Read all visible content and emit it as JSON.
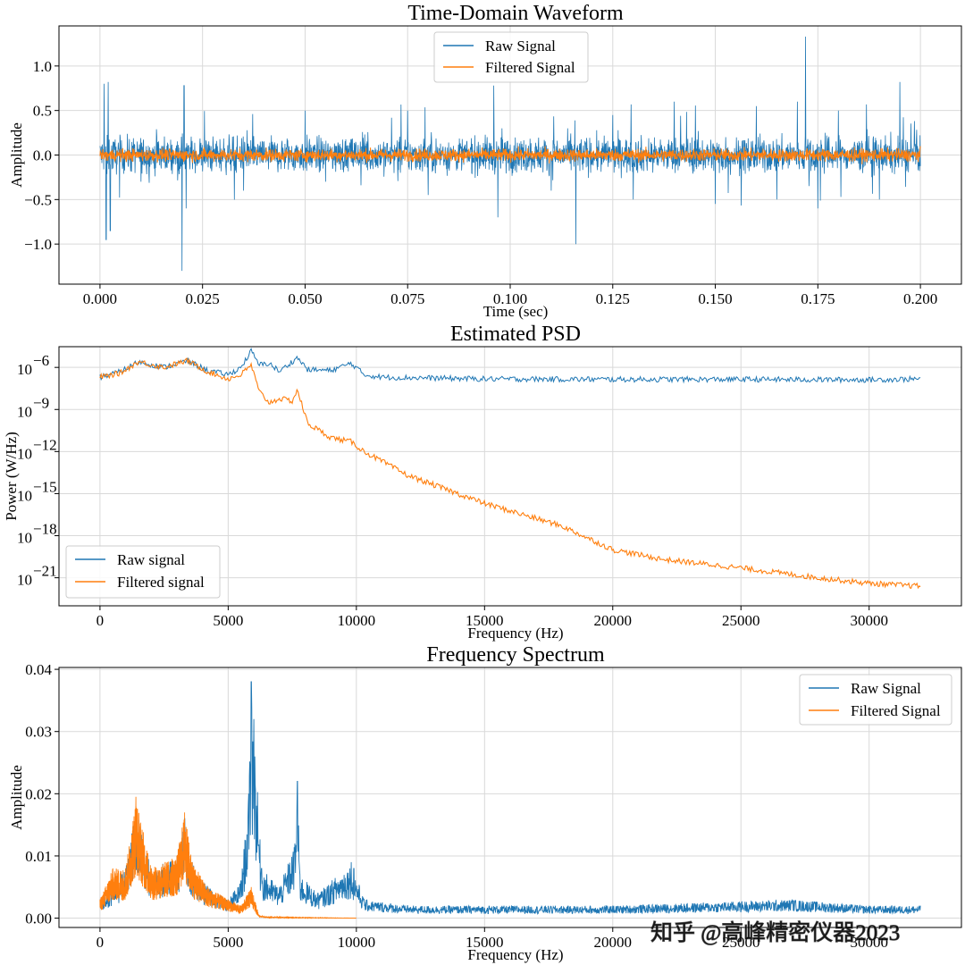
{
  "colors": {
    "raw": "#1f77b4",
    "filtered": "#ff7f0e",
    "grid": "#d9d9d9",
    "axis": "#000000"
  },
  "watermark": "知乎 @高峰精密仪器2023",
  "chart_data": [
    {
      "type": "line",
      "title": "Time-Domain Waveform",
      "xlabel": "Time (sec)",
      "ylabel": "Amplitude",
      "xlim": [
        -0.01,
        0.21
      ],
      "ylim": [
        -1.45,
        1.45
      ],
      "xticks": [
        0.0,
        0.025,
        0.05,
        0.075,
        0.1,
        0.125,
        0.15,
        0.175,
        0.2
      ],
      "xtick_labels": [
        "0.000",
        "0.025",
        "0.050",
        "0.075",
        "0.100",
        "0.125",
        "0.150",
        "0.175",
        "0.200"
      ],
      "yticks": [
        -1.0,
        -0.5,
        0.0,
        0.5,
        1.0
      ],
      "ytick_labels": [
        "−1.0",
        "−0.5",
        "0.0",
        "0.5",
        "1.0"
      ],
      "grid": true,
      "legend_position": "top-center",
      "series": [
        {
          "name": "Raw Signal",
          "x": [
            0.0,
            0.001,
            0.0015,
            0.002,
            0.0025,
            0.004,
            0.01,
            0.02,
            0.0205,
            0.021,
            0.025,
            0.035,
            0.05,
            0.055,
            0.075,
            0.08,
            0.096,
            0.097,
            0.098,
            0.1,
            0.11,
            0.116,
            0.125,
            0.13,
            0.14,
            0.15,
            0.16,
            0.165,
            0.17,
            0.172,
            0.175,
            0.18,
            0.19,
            0.195,
            0.2
          ],
          "y": [
            0.0,
            0.8,
            -0.95,
            0.82,
            -0.85,
            0.15,
            -0.3,
            -1.3,
            0.78,
            -0.6,
            0.2,
            -0.4,
            0.5,
            -0.3,
            0.5,
            -0.45,
            0.78,
            -0.7,
            0.3,
            0.1,
            -0.4,
            -1.0,
            0.45,
            -0.5,
            0.6,
            -0.55,
            0.55,
            -0.5,
            0.6,
            1.33,
            -0.6,
            0.5,
            -0.5,
            0.82,
            0.0
          ]
        },
        {
          "name": "Filtered Signal",
          "x": [
            0.0,
            0.02,
            0.05,
            0.1,
            0.15,
            0.2
          ],
          "y": [
            0.0,
            0.12,
            -0.1,
            0.12,
            -0.12,
            0.0
          ]
        }
      ]
    },
    {
      "type": "line",
      "title": "Estimated PSD",
      "xlabel": "Frequency (Hz)",
      "ylabel": "Power (W/Hz)",
      "yscale": "log",
      "xlim": [
        -1600,
        33600
      ],
      "ylim": [
        1e-23,
        3e-05
      ],
      "xticks": [
        0,
        5000,
        10000,
        15000,
        20000,
        25000,
        30000
      ],
      "xtick_labels": [
        "0",
        "5000",
        "10000",
        "15000",
        "20000",
        "25000",
        "30000"
      ],
      "yticks": [
        1e-21,
        1e-18,
        1e-15,
        1e-12,
        1e-09,
        1e-06
      ],
      "ytick_labels": [
        "10",
        "10",
        "10",
        "10",
        "10",
        "10"
      ],
      "ytick_exponents": [
        "−21",
        "−18",
        "−15",
        "−12",
        "−9",
        "−6"
      ],
      "grid": true,
      "legend_position": "lower-left",
      "series": [
        {
          "name": "Raw signal",
          "x": [
            0,
            800,
            1500,
            2500,
            3400,
            4200,
            5000,
            5500,
            5900,
            6200,
            6600,
            7000,
            7700,
            8100,
            9000,
            9800,
            10300,
            11000,
            15000,
            20000,
            25000,
            30000,
            32000
          ],
          "y": [
            2e-07,
            5e-07,
            2.5e-06,
            1e-06,
            3e-06,
            6e-07,
            3e-07,
            1e-06,
            1.5e-05,
            1.5e-06,
            2e-06,
            5e-07,
            5e-06,
            7e-07,
            6e-07,
            2e-06,
            3e-07,
            2e-07,
            1.5e-07,
            1.4e-07,
            1.4e-07,
            1.3e-07,
            1.5e-07
          ]
        },
        {
          "name": "Filtered signal",
          "x": [
            0,
            800,
            1500,
            2500,
            3400,
            4200,
            5000,
            5500,
            5900,
            6200,
            6600,
            7000,
            7500,
            7700,
            8100,
            9000,
            9800,
            10300,
            12000,
            15000,
            18000,
            20000,
            22000,
            25000,
            28000,
            30000,
            32000
          ],
          "y": [
            2e-07,
            4e-07,
            2.5e-06,
            1e-06,
            3e-06,
            5e-07,
            1.5e-07,
            3e-07,
            1.5e-06,
            2e-08,
            3e-09,
            6e-09,
            4e-09,
            2.5e-08,
            1e-10,
            1e-11,
            5e-12,
            1e-12,
            2e-14,
            2e-16,
            5e-18,
            1e-19,
            2e-20,
            5e-21,
            1e-21,
            4e-22,
            2.5e-22
          ]
        }
      ]
    },
    {
      "type": "line",
      "title": "Frequency Spectrum",
      "xlabel": "Frequency (Hz)",
      "ylabel": "Amplitude",
      "xlim": [
        -1600,
        33600
      ],
      "ylim": [
        -0.0015,
        0.0403
      ],
      "xticks": [
        0,
        5000,
        10000,
        15000,
        20000,
        25000,
        30000
      ],
      "xtick_labels": [
        "0",
        "5000",
        "10000",
        "15000",
        "20000",
        "25000",
        "30000"
      ],
      "yticks": [
        0.0,
        0.01,
        0.02,
        0.03,
        0.04
      ],
      "ytick_labels": [
        "0.00",
        "0.01",
        "0.02",
        "0.03",
        "0.04"
      ],
      "grid": true,
      "legend_position": "top-right",
      "series": [
        {
          "name": "Raw Signal",
          "x": [
            0,
            1000,
            1400,
            2000,
            3000,
            3300,
            3600,
            4200,
            5000,
            5500,
            5800,
            5900,
            6000,
            6300,
            7000,
            7600,
            7700,
            7800,
            8500,
            9800,
            9900,
            10300,
            12000,
            20000,
            27000,
            30000,
            32000
          ],
          "y": [
            0.003,
            0.008,
            0.018,
            0.008,
            0.01,
            0.016,
            0.009,
            0.005,
            0.003,
            0.006,
            0.02,
            0.038,
            0.032,
            0.008,
            0.005,
            0.012,
            0.022,
            0.007,
            0.004,
            0.009,
            0.008,
            0.003,
            0.002,
            0.002,
            0.003,
            0.002,
            0.002
          ]
        },
        {
          "name": "Filtered Signal",
          "x": [
            0,
            500,
            1000,
            1400,
            2000,
            3000,
            3300,
            3600,
            4200,
            5000,
            5500,
            5900,
            6200,
            6500,
            8000,
            10000
          ],
          "y": [
            0.003,
            0.008,
            0.008,
            0.0195,
            0.008,
            0.01,
            0.017,
            0.009,
            0.005,
            0.003,
            0.002,
            0.005,
            0.0005,
            0.0002,
            0.0001,
            0.0
          ]
        }
      ]
    }
  ]
}
